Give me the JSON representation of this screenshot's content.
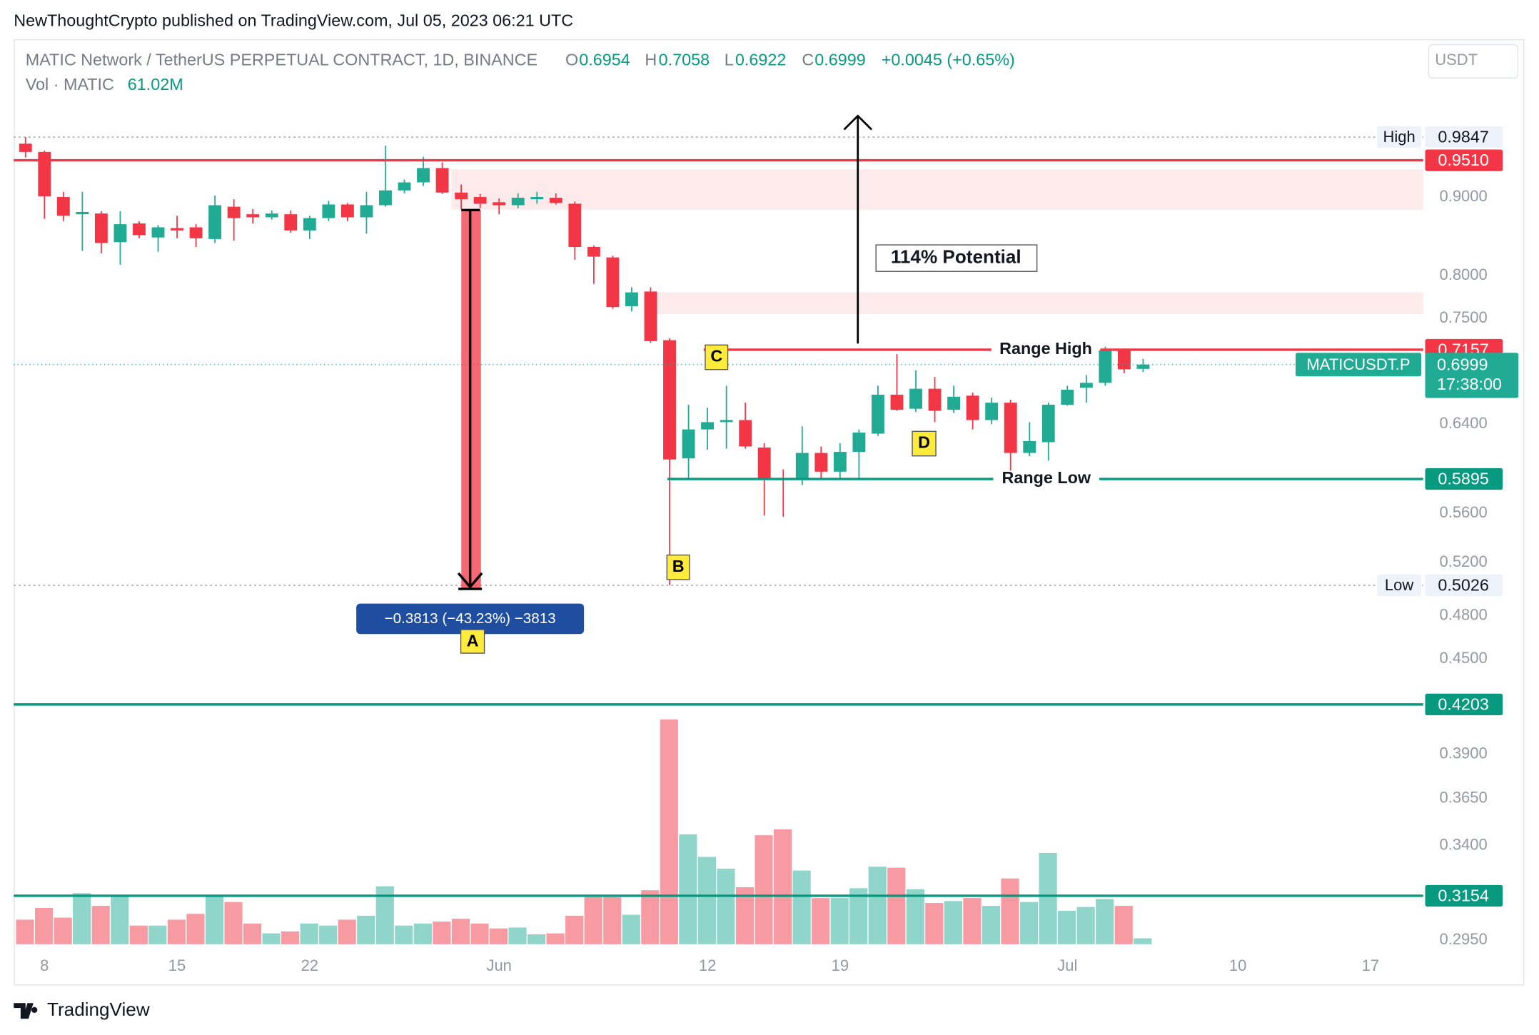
{
  "header": {
    "publisher": "NewThoughtCrypto published on TradingView.com, Jul 05, 2023 06:21 UTC",
    "title": "MATIC Network / TetherUS PERPETUAL CONTRACT, 1D, BINANCE",
    "letters": [
      "O",
      "H",
      "L",
      "C"
    ],
    "change": "+0.0045 (+0.65%)",
    "volume_label": "Vol · MATIC",
    "volume_value": "61.02M",
    "currency": "USDT"
  },
  "chart_data": {
    "type": "candlestick",
    "log_scale": true,
    "categories": [
      null,
      "8",
      null,
      null,
      null,
      null,
      null,
      null,
      "15",
      null,
      null,
      null,
      null,
      null,
      null,
      "22",
      null,
      null,
      null,
      null,
      null,
      null,
      null,
      null,
      null,
      "Jun",
      null,
      null,
      null,
      null,
      null,
      null,
      null,
      null,
      null,
      null,
      "12",
      null,
      null,
      null,
      null,
      null,
      null,
      "19",
      null,
      null,
      null,
      null,
      null,
      null,
      null,
      null,
      null,
      null,
      null,
      "Jul",
      null,
      null,
      null,
      null,
      null,
      null,
      null,
      null,
      "10",
      null,
      null,
      null,
      null,
      null,
      null,
      "17"
    ],
    "open": [
      0.975,
      0.963,
      0.9,
      0.877,
      0.878,
      0.841,
      0.865,
      0.847,
      0.859,
      0.86,
      0.845,
      0.887,
      0.877,
      0.873,
      0.877,
      0.856,
      0.872,
      0.89,
      0.873,
      0.889,
      0.909,
      0.92,
      0.94,
      0.906,
      0.9,
      0.893,
      0.889,
      0.897,
      0.899,
      0.891,
      0.835,
      0.822,
      0.764,
      0.781,
      0.726,
      0.608,
      0.635,
      0.642,
      0.644,
      0.618,
      0.59,
      0.589,
      0.613,
      0.596,
      0.614,
      0.631,
      0.669,
      0.655,
      0.675,
      0.654,
      0.668,
      0.644,
      0.661,
      0.613,
      0.623,
      0.659,
      0.676,
      0.681,
      0.715,
      0.6954,
      null,
      null,
      null,
      null,
      null,
      null,
      null,
      null,
      null,
      null,
      null,
      null
    ],
    "high": [
      0.9847,
      0.965,
      0.907,
      0.907,
      0.881,
      0.881,
      0.868,
      0.863,
      0.875,
      0.864,
      0.902,
      0.897,
      0.884,
      0.882,
      0.882,
      0.875,
      0.895,
      0.892,
      0.907,
      0.972,
      0.924,
      0.956,
      0.948,
      0.917,
      0.904,
      0.898,
      0.905,
      0.907,
      0.905,
      0.894,
      0.837,
      0.824,
      0.786,
      0.786,
      0.728,
      0.659,
      0.656,
      0.678,
      0.661,
      0.622,
      0.598,
      0.638,
      0.619,
      0.622,
      0.635,
      0.678,
      0.711,
      0.694,
      0.687,
      0.678,
      0.671,
      0.666,
      0.664,
      0.642,
      0.661,
      0.678,
      0.689,
      0.719,
      0.717,
      0.7058,
      null,
      null,
      null,
      null,
      null,
      null,
      null,
      null,
      null,
      null,
      null,
      null
    ],
    "low": [
      0.955,
      0.871,
      0.868,
      0.83,
      0.827,
      0.813,
      0.846,
      0.829,
      0.846,
      0.835,
      0.84,
      0.843,
      0.865,
      0.87,
      0.853,
      0.845,
      0.868,
      0.868,
      0.852,
      0.887,
      0.905,
      0.915,
      0.904,
      0.884,
      0.885,
      0.877,
      0.885,
      0.891,
      0.89,
      0.819,
      0.79,
      0.761,
      0.758,
      0.723,
      0.5026,
      0.59,
      0.616,
      0.617,
      0.617,
      0.558,
      0.557,
      0.584,
      0.59,
      0.589,
      0.59,
      0.629,
      0.653,
      0.652,
      0.642,
      0.651,
      0.635,
      0.64,
      0.597,
      0.61,
      0.606,
      0.658,
      0.661,
      0.678,
      0.691,
      0.6922,
      null,
      null,
      null,
      null,
      null,
      null,
      null,
      null,
      null,
      null,
      null,
      null
    ],
    "close": [
      0.963,
      0.901,
      0.875,
      0.88,
      0.84,
      0.864,
      0.85,
      0.86,
      0.856,
      0.846,
      0.889,
      0.872,
      0.873,
      0.878,
      0.856,
      0.872,
      0.89,
      0.873,
      0.889,
      0.909,
      0.92,
      0.94,
      0.906,
      0.897,
      0.891,
      0.889,
      0.899,
      0.9,
      0.892,
      0.835,
      0.823,
      0.763,
      0.78,
      0.725,
      0.607,
      0.635,
      0.642,
      0.644,
      0.619,
      0.589,
      0.589,
      0.613,
      0.596,
      0.614,
      0.632,
      0.669,
      0.654,
      0.675,
      0.653,
      0.667,
      0.644,
      0.661,
      0.613,
      0.624,
      0.659,
      0.674,
      0.681,
      0.715,
      0.695,
      0.6999,
      null,
      null,
      null,
      null,
      null,
      null,
      null,
      null,
      null,
      null,
      null,
      null
    ],
    "volume": [
      254,
      376,
      275,
      529,
      397,
      498,
      193,
      193,
      254,
      315,
      498,
      437,
      214,
      112,
      132,
      214,
      193,
      254,
      295,
      600,
      193,
      214,
      234,
      264,
      214,
      163,
      173,
      102,
      112,
      295,
      488,
      488,
      305,
      559,
      2329,
      1139,
      905,
      783,
      590,
      1129,
      1190,
      763,
      478,
      478,
      580,
      803,
      793,
      570,
      427,
      447,
      478,
      397,
      681,
      437,
      946,
      346,
      386,
      468,
      397,
      61.02,
      null,
      null,
      null,
      null,
      null,
      null,
      null,
      null,
      null,
      null,
      null,
      null
    ],
    "up_color": "#22ab94",
    "down_color": "#f23645",
    "ylim": [
      0.292,
      1.132
    ],
    "yticks": [
      {
        "value": 0.9,
        "label": "0.9000"
      },
      {
        "value": 0.8,
        "label": "0.8000"
      },
      {
        "value": 0.75,
        "label": "0.7500"
      },
      {
        "value": 0.64,
        "label": "0.6400"
      },
      {
        "value": 0.56,
        "label": "0.5600"
      },
      {
        "value": 0.52,
        "label": "0.5200"
      },
      {
        "value": 0.48,
        "label": "0.4800"
      },
      {
        "value": 0.45,
        "label": "0.4500"
      },
      {
        "value": 0.39,
        "label": "0.3900"
      },
      {
        "value": 0.365,
        "label": "0.3650"
      },
      {
        "value": 0.34,
        "label": "0.3400"
      },
      {
        "value": 0.295,
        "label": "0.2950"
      }
    ],
    "levels": [
      {
        "name": "High",
        "price": 0.9847,
        "color": "#9598a1",
        "style": "dotted"
      },
      {
        "price": 0.951,
        "label": "0.9510",
        "color": "#f23645",
        "style": "solid"
      },
      {
        "name": "Range High",
        "price": 0.7157,
        "color": "#f23645",
        "style": "solid"
      },
      {
        "name": "Range Low",
        "price": 0.5895,
        "color": "#089981",
        "style": "solid"
      },
      {
        "name": "Low",
        "price": 0.5026,
        "color": "#9598a1",
        "style": "dotted"
      },
      {
        "price": 0.4203,
        "color": "#089981",
        "style": "solid"
      },
      {
        "price": 0.3154,
        "color": "#089981",
        "style": "solid"
      }
    ],
    "zones": [
      {
        "low": 0.883,
        "high": 0.938,
        "color": "#fdeaea"
      },
      {
        "low": 0.755,
        "high": 0.78,
        "color": "#fdeaea"
      }
    ],
    "current": {
      "symbol": "MATICUSDT.P",
      "countdown": "17:38:00",
      "color": "#22ab94"
    },
    "annotations": {
      "potential": "114% Potential",
      "measure": "−0.3813 (−43.23%) −3813",
      "points": [
        "A",
        "B",
        "C",
        "D"
      ]
    }
  },
  "footer": {
    "brand": "TradingView"
  }
}
